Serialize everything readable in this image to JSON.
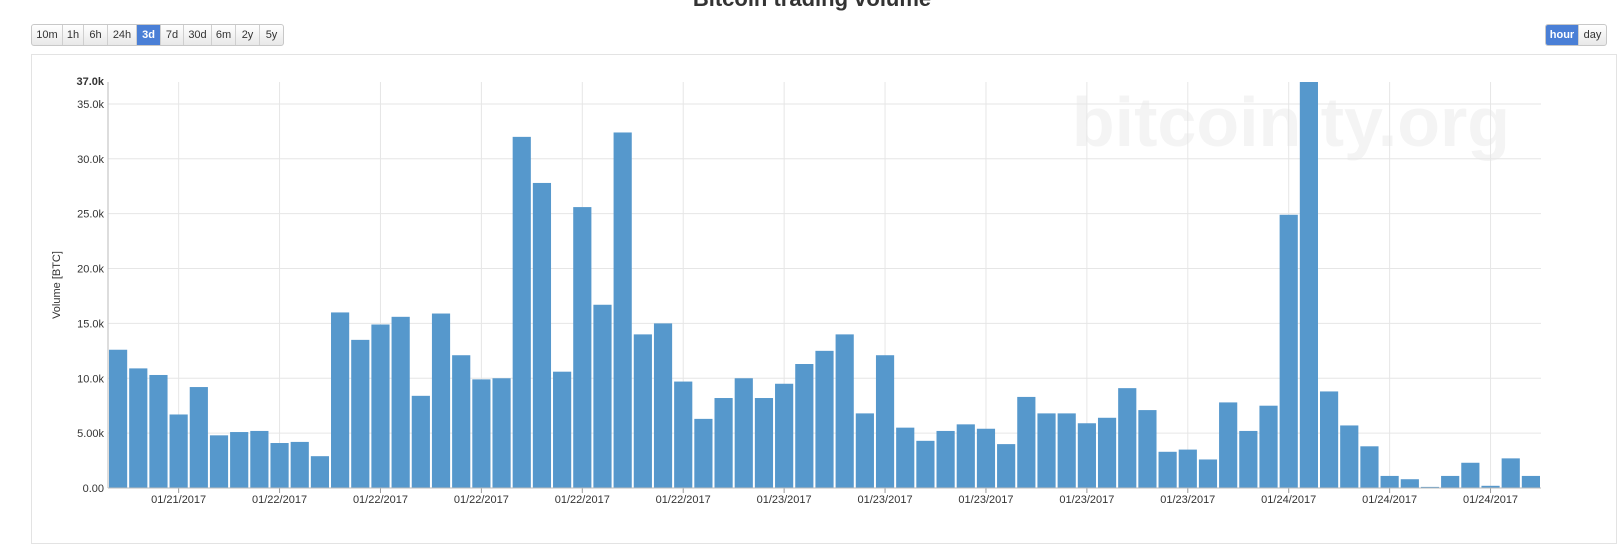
{
  "page_title": "Bitcoin trading volume",
  "range_buttons": [
    "10m",
    "1h",
    "6h",
    "24h",
    "3d",
    "7d",
    "30d",
    "6m",
    "2y",
    "5y"
  ],
  "range_selected": "3d",
  "unit_buttons": [
    "hour",
    "day"
  ],
  "unit_selected": "hour",
  "watermark": "bitcoinity.org",
  "colors": {
    "bar": "#5698cc",
    "accent": "#4a7fd6",
    "grid": "#e6e6e6"
  },
  "chart_data": {
    "type": "bar",
    "ylabel": "Volume [BTC]",
    "ylim": [
      0,
      37000
    ],
    "yticks": [
      {
        "value": 0,
        "label": "0.00"
      },
      {
        "value": 5000,
        "label": "5.00k"
      },
      {
        "value": 10000,
        "label": "10.0k"
      },
      {
        "value": 15000,
        "label": "15.0k"
      },
      {
        "value": 20000,
        "label": "20.0k"
      },
      {
        "value": 25000,
        "label": "25.0k"
      },
      {
        "value": 30000,
        "label": "30.0k"
      },
      {
        "value": 35000,
        "label": "35.0k"
      },
      {
        "value": 37000,
        "label": "37.0k"
      }
    ],
    "xticks": [
      "01/21/2017",
      "01/22/2017",
      "01/22/2017",
      "01/22/2017",
      "01/22/2017",
      "01/22/2017",
      "01/23/2017",
      "01/23/2017",
      "01/23/2017",
      "01/23/2017",
      "01/23/2017",
      "01/24/2017",
      "01/24/2017",
      "01/24/2017"
    ],
    "values": [
      12600,
      10900,
      10300,
      6700,
      9200,
      4800,
      5100,
      5200,
      4100,
      4200,
      2900,
      16000,
      13500,
      14900,
      15600,
      8400,
      15900,
      12100,
      9900,
      10000,
      32000,
      27800,
      10600,
      25600,
      16700,
      32400,
      14000,
      15000,
      9700,
      6300,
      8200,
      10000,
      8200,
      9500,
      11300,
      12500,
      14000,
      6800,
      12100,
      5500,
      4300,
      5200,
      5800,
      5400,
      4000,
      8300,
      6800,
      6800,
      5900,
      6400,
      9100,
      7100,
      3300,
      3500,
      2600,
      7800,
      5200,
      7500,
      24900,
      37000,
      8800,
      5700,
      3800,
      1100,
      800,
      100,
      1100,
      2300,
      200,
      2700,
      1100
    ]
  }
}
